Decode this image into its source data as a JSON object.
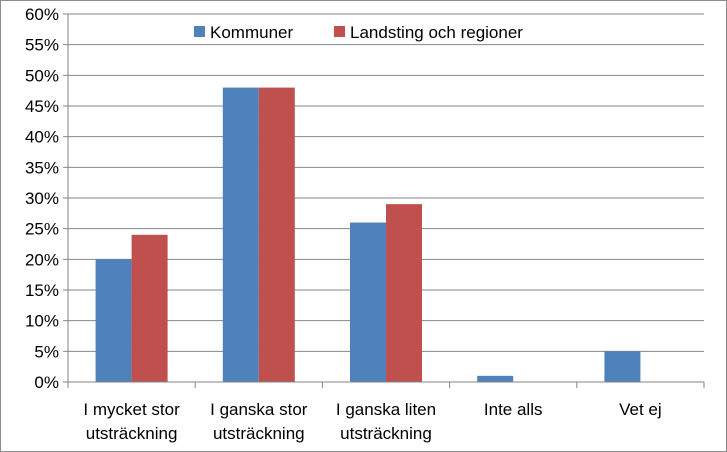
{
  "chart_data": {
    "type": "bar",
    "title": "",
    "xlabel": "",
    "ylabel": "",
    "ylim": [
      0,
      60
    ],
    "y_ticks": [
      "0%",
      "5%",
      "10%",
      "15%",
      "20%",
      "25%",
      "30%",
      "35%",
      "40%",
      "45%",
      "50%",
      "55%",
      "60%"
    ],
    "grid": true,
    "legend_position": "top",
    "categories": [
      [
        "I mycket stor",
        "utsträckning"
      ],
      [
        "I ganska stor",
        "utsträckning"
      ],
      [
        "I ganska liten",
        "utsträckning"
      ],
      [
        "Inte alls"
      ],
      [
        "Vet ej"
      ]
    ],
    "series": [
      {
        "name": "Kommuner",
        "color": "#4f81bd",
        "values": [
          20,
          48,
          26,
          1,
          5
        ]
      },
      {
        "name": "Landsting och regioner",
        "color": "#c0504d",
        "values": [
          24,
          48,
          29,
          0,
          0
        ]
      }
    ]
  }
}
